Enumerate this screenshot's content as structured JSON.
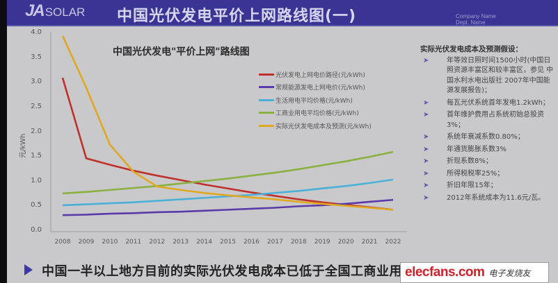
{
  "header": {
    "logo_ja": "JA",
    "logo_solar": "SOLAR",
    "title": "中国光伏发电平价上网路线图(一)",
    "company_name": "Company Name",
    "dept_name": "Dept. Name",
    "bg_color": "#3a3594"
  },
  "chart_data": {
    "type": "line",
    "title": "中国光伏发电\"平价上网\"路线图",
    "xlabel": "",
    "ylabel": "元/kWh",
    "ylim": [
      0,
      4.0
    ],
    "yticks": [
      "0.0",
      "0.5",
      "1.0",
      "1.5",
      "2.0",
      "2.5",
      "3.0",
      "3.5",
      "4.0"
    ],
    "grid": false,
    "legend_position": "upper right",
    "categories": [
      "2008",
      "2009",
      "2010",
      "2011",
      "2012",
      "2013",
      "2014",
      "2015",
      "2016",
      "2017",
      "2018",
      "2019",
      "2020",
      "2021",
      "2022"
    ],
    "series": [
      {
        "name": "光伏发电上网电价路径(元/kWh)",
        "color": "#c0302a",
        "values": [
          3.1,
          1.47,
          1.34,
          1.22,
          1.12,
          1.03,
          0.94,
          0.86,
          0.78,
          0.71,
          0.64,
          0.58,
          0.53,
          0.48,
          0.43
        ]
      },
      {
        "name": "常规能源发电上网电价(元/kWh)",
        "color": "#5a3aa8",
        "values": [
          0.32,
          0.33,
          0.35,
          0.36,
          0.38,
          0.39,
          0.41,
          0.43,
          0.45,
          0.47,
          0.5,
          0.52,
          0.55,
          0.59,
          0.63
        ]
      },
      {
        "name": "生活用电平均价格(元/kWh)",
        "color": "#4ab0d8",
        "values": [
          0.52,
          0.54,
          0.56,
          0.58,
          0.61,
          0.64,
          0.67,
          0.7,
          0.73,
          0.77,
          0.81,
          0.86,
          0.91,
          0.97,
          1.04
        ]
      },
      {
        "name": "工商业用电平均价格(元/kWh)",
        "color": "#8ab040",
        "values": [
          0.76,
          0.79,
          0.83,
          0.87,
          0.91,
          0.96,
          1.01,
          1.06,
          1.12,
          1.18,
          1.25,
          1.33,
          1.41,
          1.5,
          1.6
        ]
      },
      {
        "name": "实际光伏发电成本及预测(元/kWh)",
        "color": "#e0a820",
        "values": [
          3.95,
          2.9,
          1.75,
          1.2,
          0.9,
          0.83,
          0.77,
          0.72,
          0.68,
          0.64,
          0.59,
          0.55,
          0.51,
          0.47,
          0.43
        ]
      }
    ]
  },
  "notes": {
    "title": "实际光伏发电成本及预测假设：",
    "items": [
      "年等效日照时间1500小时(中国日照资源丰富区和较丰富区，参见 中国水利水电出版社 2007年中国能源发展报告)；",
      "每瓦光伏系统首年发电1.2kWh；",
      "首年维护费用占系统初始总投资3%；",
      "系统年衰减系数0.80%；",
      "年通货膨胀系数3%",
      "折现系数8%；",
      "所得税税率25%；",
      "折旧年限15年；",
      "2012年系统成本为11.6元/瓦。"
    ]
  },
  "footer": {
    "text": "中国一半以上地方目前的实际光伏发电成本已低于全国工商业用电平均电价"
  },
  "watermark": {
    "brand": "elecfans.com",
    "cn": "电子发烧友"
  }
}
